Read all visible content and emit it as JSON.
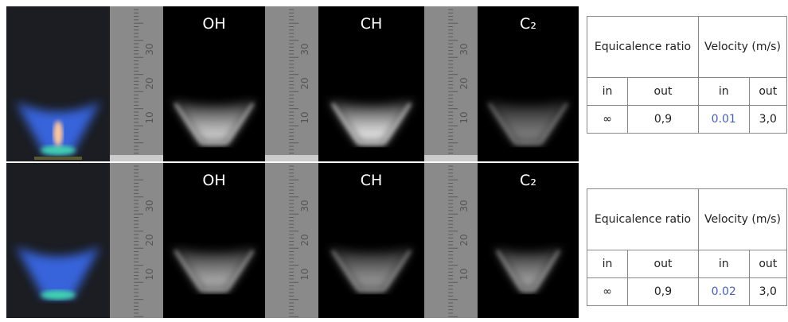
{
  "rows": [
    {
      "labels": [
        "OH",
        "CH",
        "C₂"
      ],
      "ruler_marks": [
        "10",
        "20",
        "30"
      ],
      "table": {
        "header": [
          "Equicalence ratio",
          "Velocity (m/s)"
        ],
        "subheader": [
          "in",
          "out",
          "in",
          "out"
        ],
        "row": [
          "∞",
          "0,9",
          "0.01",
          "3,0"
        ]
      }
    },
    {
      "labels": [
        "OH",
        "CH",
        "C₂"
      ],
      "ruler_marks": [
        "10",
        "20",
        "30"
      ],
      "table": {
        "header": [
          "Equicalence ratio",
          "Velocity (m/s)"
        ],
        "subheader": [
          "in",
          "out",
          "in",
          "out"
        ],
        "row": [
          "∞",
          "0,9",
          "0.02",
          "3,0"
        ]
      }
    }
  ]
}
